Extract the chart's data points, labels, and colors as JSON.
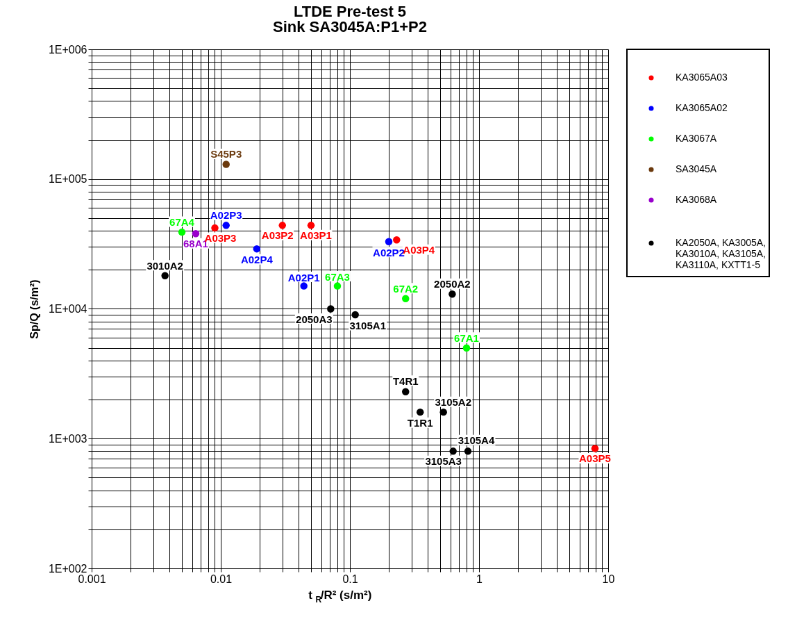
{
  "chart_data": {
    "type": "scatter",
    "title": "LTDE Pre-test 5",
    "subtitle": "Sink SA3045A:P1+P2",
    "xlabel": "t$_{R}$/R² (s/m²)",
    "ylabel": "Sp/Q (s/m²)",
    "log": "xy",
    "xlim": [
      0.001,
      10
    ],
    "ylim": [
      100,
      1000000
    ],
    "xticks": [
      0.001,
      {
        "value": 0.002,
        "label": null
      },
      {
        "value": 0.003,
        "label": null
      },
      {
        "value": 0.004,
        "label": null
      },
      {
        "value": 0.005,
        "label": null
      },
      {
        "value": 0.006,
        "label": null
      },
      {
        "value": 0.007,
        "label": null
      },
      {
        "value": 0.008,
        "label": null
      },
      {
        "value": 0.009,
        "label": null
      },
      0.01,
      {
        "value": 0.02,
        "label": null
      },
      {
        "value": 0.03,
        "label": null
      },
      {
        "value": 0.04,
        "label": null
      },
      {
        "value": 0.05,
        "label": null
      },
      {
        "value": 0.06,
        "label": null
      },
      {
        "value": 0.07,
        "label": null
      },
      {
        "value": 0.08,
        "label": null
      },
      {
        "value": 0.09,
        "label": null
      },
      0.1,
      {
        "value": 0.2,
        "label": null
      },
      {
        "value": 0.3,
        "label": null
      },
      {
        "value": 0.4,
        "label": null
      },
      {
        "value": 0.5,
        "label": null
      },
      {
        "value": 0.6,
        "label": null
      },
      {
        "value": 0.7,
        "label": null
      },
      {
        "value": 0.8,
        "label": null
      },
      {
        "value": 0.9,
        "label": null
      },
      1,
      {
        "value": 2,
        "label": null
      },
      {
        "value": 3,
        "label": null
      },
      {
        "value": 4,
        "label": null
      },
      {
        "value": 5,
        "label": null
      },
      {
        "value": 6,
        "label": null
      },
      {
        "value": 7,
        "label": null
      },
      {
        "value": 8,
        "label": null
      },
      {
        "value": 9,
        "label": null
      },
      10
    ],
    "yticks": [
      {
        "value": 100,
        "label": "1E+002"
      },
      {
        "value": 200,
        "label": null
      },
      {
        "value": 300,
        "label": null
      },
      {
        "value": 400,
        "label": null
      },
      {
        "value": 500,
        "label": null
      },
      {
        "value": 600,
        "label": null
      },
      {
        "value": 700,
        "label": null
      },
      {
        "value": 800,
        "label": null
      },
      {
        "value": 900,
        "label": null
      },
      {
        "value": 1000,
        "label": "1E+003"
      },
      {
        "value": 2000,
        "label": null
      },
      {
        "value": 3000,
        "label": null
      },
      {
        "value": 4000,
        "label": null
      },
      {
        "value": 5000,
        "label": null
      },
      {
        "value": 6000,
        "label": null
      },
      {
        "value": 7000,
        "label": null
      },
      {
        "value": 8000,
        "label": null
      },
      {
        "value": 9000,
        "label": null
      },
      {
        "value": 10000,
        "label": "1E+004"
      },
      {
        "value": 20000,
        "label": null
      },
      {
        "value": 30000,
        "label": null
      },
      {
        "value": 40000,
        "label": null
      },
      {
        "value": 50000,
        "label": null
      },
      {
        "value": 60000,
        "label": null
      },
      {
        "value": 70000,
        "label": null
      },
      {
        "value": 80000,
        "label": null
      },
      {
        "value": 90000,
        "label": null
      },
      {
        "value": 100000,
        "label": "1E+005"
      },
      {
        "value": 200000,
        "label": null
      },
      {
        "value": 300000,
        "label": null
      },
      {
        "value": 400000,
        "label": null
      },
      {
        "value": 500000,
        "label": null
      },
      {
        "value": 600000,
        "label": null
      },
      {
        "value": 700000,
        "label": null
      },
      {
        "value": 800000,
        "label": null
      },
      {
        "value": 900000,
        "label": null
      },
      {
        "value": 1000000,
        "label": "1E+006"
      }
    ],
    "grid": true,
    "legend": "right",
    "marker": "circle",
    "series": [
      {
        "name": "KA3065A03",
        "color": "#ff0000",
        "x": [
          0.009,
          0.03,
          0.05,
          0.23,
          7.9
        ],
        "values": [
          42000,
          44000,
          44000,
          34000,
          840
        ],
        "value_labels": [
          "A03P3",
          "A03P2",
          "A03P1",
          "A03P4",
          "A03P5"
        ]
      },
      {
        "name": "KA3065A02",
        "color": "#0000ff",
        "x": [
          0.011,
          0.019,
          0.2,
          0.044
        ],
        "values": [
          44000,
          29000,
          33000,
          15000
        ],
        "value_labels": [
          "A02P3",
          "A02P4",
          "A02P2",
          "A02P1"
        ]
      },
      {
        "name": "KA3067A",
        "color": "#00ff00",
        "x": [
          0.005,
          0.08,
          0.27,
          0.8
        ],
        "values": [
          39000,
          15000,
          12000,
          5000
        ],
        "value_labels": [
          "67A4",
          "67A3",
          "67A2",
          "67A1"
        ]
      },
      {
        "name": "SA3045A",
        "color": "#6b3a0e",
        "x": [
          0.011
        ],
        "values": [
          130000
        ],
        "value_labels": [
          "S45P3"
        ]
      },
      {
        "name": "KA3068A",
        "color": "#9900cc",
        "x": [
          0.0064
        ],
        "values": [
          38000
        ],
        "value_labels": [
          "68A1"
        ]
      },
      {
        "name": "KA2050A, KA3005A, KA3010A, KA3105A, KA3110A, KXTT1-5",
        "color": "#000000",
        "x": [
          0.0037,
          0.071,
          0.11,
          0.62,
          0.27,
          0.35,
          0.53,
          0.82,
          0.63
        ],
        "values": [
          18000,
          10000,
          9000,
          13000,
          2300,
          1600,
          1600,
          800,
          800
        ],
        "value_labels": [
          "3010A2",
          "2050A3",
          "3105A1",
          "2050A2",
          "T4R1",
          "T1R1",
          "3105A2",
          "3105A4",
          "3105A3"
        ]
      }
    ]
  }
}
